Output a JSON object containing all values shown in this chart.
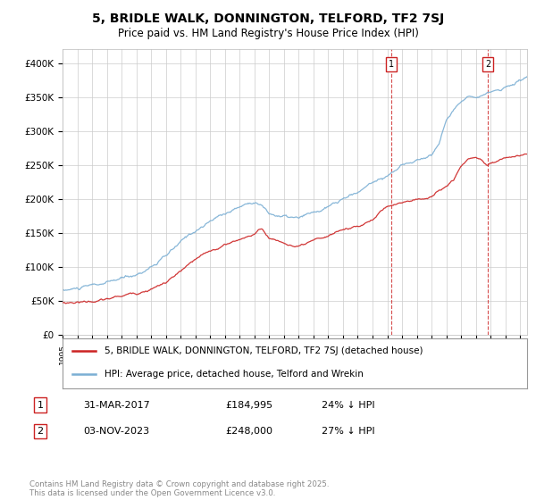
{
  "title": "5, BRIDLE WALK, DONNINGTON, TELFORD, TF2 7SJ",
  "subtitle": "Price paid vs. HM Land Registry's House Price Index (HPI)",
  "background_color": "#ffffff",
  "grid_color": "#cccccc",
  "hpi_color": "#7bafd4",
  "property_color": "#cc2222",
  "sale1_date_num": 22.25,
  "sale1_price": 184995,
  "sale1_label": "31-MAR-2017",
  "sale1_pct": "24% ↓ HPI",
  "sale2_date_num": 28.83,
  "sale2_price": 248000,
  "sale2_label": "03-NOV-2023",
  "sale2_pct": "27% ↓ HPI",
  "legend1": "5, BRIDLE WALK, DONNINGTON, TELFORD, TF2 7SJ (detached house)",
  "legend2": "HPI: Average price, detached house, Telford and Wrekin",
  "footnote": "Contains HM Land Registry data © Crown copyright and database right 2025.\nThis data is licensed under the Open Government Licence v3.0.",
  "xlim": [
    0,
    31.5
  ],
  "ylim": [
    0,
    420000
  ]
}
